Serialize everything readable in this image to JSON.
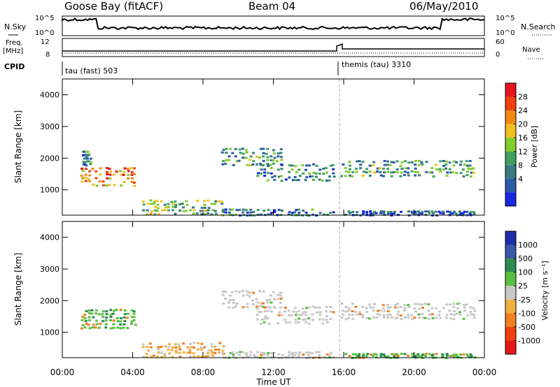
{
  "header": {
    "station": "Goose Bay (fitACF)",
    "beam": "Beam 04",
    "date": "06/May/2010"
  },
  "summary": {
    "nsky_label": "N.Sky",
    "nsky_ticks": [
      "10^5",
      "10^0"
    ],
    "nsearch_label": "N.Search",
    "nsearch_ticks": [
      "10^5",
      "10^0"
    ],
    "freq_label": "Freq.",
    "freq_unit": "[MHz]",
    "freq_ticks": [
      "12",
      "8"
    ],
    "nave_label": "Nave",
    "nave_ticks": [
      "60",
      "0"
    ],
    "cpid_label": "CPID",
    "cpid_segments": [
      {
        "label": "tau (fast) 503"
      },
      {
        "label": "themis (tau) 3310"
      }
    ]
  },
  "axes": {
    "ylabel": "Slant Range [km]",
    "yticks": [
      "4000",
      "3000",
      "2000",
      "1000"
    ],
    "xticks": [
      "00:00",
      "04:00",
      "08:00",
      "12:00",
      "16:00",
      "20:00",
      "00:00"
    ],
    "xlabel": "Time UT"
  },
  "power_colorbar": {
    "label": "Power [dB]",
    "ticks": [
      "28",
      "24",
      "20",
      "16",
      "12",
      "8",
      "4"
    ],
    "colors": [
      "#e8141e",
      "#f04010",
      "#f08a10",
      "#f0c020",
      "#80cc30",
      "#3fa060",
      "#3a7a80",
      "#2c5aa8",
      "#1a28e0"
    ]
  },
  "velocity_colorbar": {
    "label": "Velocity [m s⁻¹]",
    "ticks": [
      "1000",
      "500",
      "100",
      "25",
      "-25",
      "-100",
      "-500",
      "-1000"
    ],
    "colors": [
      "#1e2ea8",
      "#3a58a8",
      "#2e8a50",
      "#58c040",
      "#c8c8c8",
      "#f0b040",
      "#f08020",
      "#f04010",
      "#e81818"
    ]
  },
  "chart_data": [
    {
      "type": "heatmap",
      "name": "power",
      "x_unit": "hours UT",
      "y_unit": "km",
      "xlim": [
        0,
        24
      ],
      "ylim": [
        200,
        4500
      ],
      "regions": [
        {
          "t0": 1.0,
          "t1": 4.2,
          "r0": 1150,
          "r1": 1800,
          "level": 0.75
        },
        {
          "t0": 1.1,
          "t1": 1.6,
          "r0": 1800,
          "r1": 2300,
          "level": 0.3
        },
        {
          "t0": 4.5,
          "t1": 9.2,
          "r0": 250,
          "r1": 750,
          "level": 0.45
        },
        {
          "t0": 9.0,
          "t1": 15.5,
          "r0": 220,
          "r1": 450,
          "level": 0.25
        },
        {
          "t0": 9.0,
          "t1": 12.5,
          "r0": 1800,
          "r1": 2400,
          "level": 0.35
        },
        {
          "t0": 11.0,
          "t1": 15.5,
          "r0": 1300,
          "r1": 1900,
          "level": 0.3
        },
        {
          "t0": 15.8,
          "t1": 23.5,
          "r0": 1450,
          "r1": 2000,
          "level": 0.35
        },
        {
          "t0": 16.0,
          "t1": 23.5,
          "r0": 220,
          "r1": 380,
          "level": 0.15
        }
      ]
    },
    {
      "type": "heatmap",
      "name": "velocity",
      "x_unit": "hours UT",
      "y_unit": "km",
      "xlim": [
        0,
        24
      ],
      "ylim": [
        200,
        4500
      ],
      "regions": [
        {
          "t0": 1.0,
          "t1": 4.2,
          "r0": 1150,
          "r1": 1800,
          "v": 150
        },
        {
          "t0": 4.5,
          "t1": 9.2,
          "r0": 250,
          "r1": 750,
          "v": -80
        },
        {
          "t0": 9.0,
          "t1": 15.5,
          "r0": 220,
          "r1": 450,
          "v": 0
        },
        {
          "t0": 9.0,
          "t1": 12.5,
          "r0": 1800,
          "r1": 2400,
          "v": 0
        },
        {
          "t0": 11.0,
          "t1": 15.5,
          "r0": 1300,
          "r1": 1900,
          "v": 0
        },
        {
          "t0": 15.8,
          "t1": 23.5,
          "r0": 1450,
          "r1": 2000,
          "v": 0
        },
        {
          "t0": 16.0,
          "t1": 23.5,
          "r0": 220,
          "r1": 380,
          "v": 20
        }
      ]
    }
  ]
}
